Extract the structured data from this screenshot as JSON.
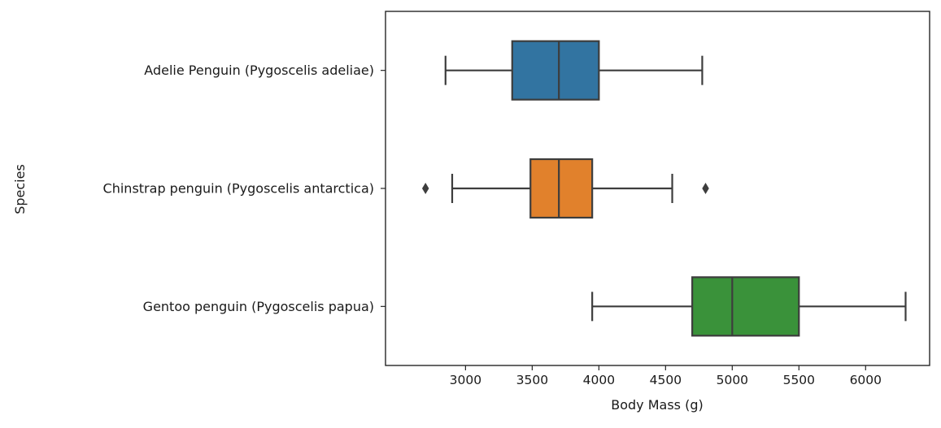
{
  "chart_data": {
    "type": "boxplot",
    "orientation": "horizontal",
    "title": "",
    "xlabel": "Body Mass (g)",
    "ylabel": "Species",
    "xlim": [
      2400,
      6480
    ],
    "xticks": [
      3000,
      3500,
      4000,
      4500,
      5000,
      5500,
      6000
    ],
    "xtick_labels": [
      "3000",
      "3500",
      "4000",
      "4500",
      "5000",
      "5500",
      "6000"
    ],
    "grid": false,
    "categories": [
      "Adelie Penguin (Pygoscelis adeliae)",
      "Chinstrap penguin (Pygoscelis antarctica)",
      "Gentoo penguin (Pygoscelis papua)"
    ],
    "boxes": [
      {
        "category": "Adelie Penguin (Pygoscelis adeliae)",
        "whisker_low": 2850,
        "q1": 3350,
        "median": 3700,
        "q3": 4000,
        "whisker_high": 4775,
        "outliers": [],
        "color": "#3274a1"
      },
      {
        "category": "Chinstrap penguin (Pygoscelis antarctica)",
        "whisker_low": 2900,
        "q1": 3487,
        "median": 3700,
        "q3": 3950,
        "whisker_high": 4550,
        "outliers": [
          2700,
          4800
        ],
        "color": "#e1812c"
      },
      {
        "category": "Gentoo penguin (Pygoscelis papua)",
        "whisker_low": 3950,
        "q1": 4700,
        "median": 5000,
        "q3": 5500,
        "whisker_high": 6300,
        "outliers": [],
        "color": "#3a923a"
      }
    ],
    "line_color": "#3d3d3d"
  }
}
